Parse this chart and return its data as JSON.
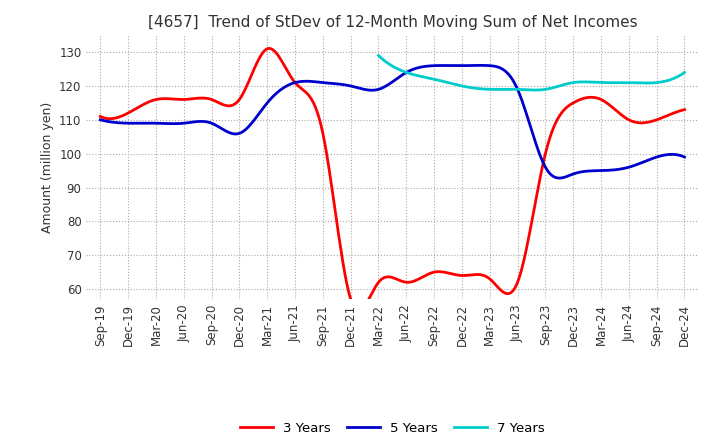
{
  "title": "[4657]  Trend of StDev of 12-Month Moving Sum of Net Incomes",
  "ylabel": "Amount (million yen)",
  "ylim": [
    57,
    135
  ],
  "yticks": [
    60,
    70,
    80,
    90,
    100,
    110,
    120,
    130
  ],
  "x_labels": [
    "Sep-19",
    "Dec-19",
    "Mar-20",
    "Jun-20",
    "Sep-20",
    "Dec-20",
    "Mar-21",
    "Jun-21",
    "Sep-21",
    "Dec-21",
    "Mar-22",
    "Jun-22",
    "Sep-22",
    "Dec-22",
    "Mar-23",
    "Jun-23",
    "Sep-23",
    "Dec-23",
    "Mar-24",
    "Jun-24",
    "Sep-24",
    "Dec-24"
  ],
  "series": {
    "3 Years": {
      "color": "#FF0000",
      "values": [
        111,
        112,
        116,
        116,
        116,
        116,
        131,
        121,
        106,
        57,
        62,
        62,
        65,
        64,
        63,
        62,
        100,
        115,
        116,
        110,
        110,
        113
      ]
    },
    "5 Years": {
      "color": "#0000CC",
      "values": [
        110,
        109,
        109,
        109,
        109,
        106,
        115,
        121,
        121,
        120,
        119,
        124,
        126,
        126,
        126,
        119,
        96,
        94,
        95,
        96,
        99,
        99
      ]
    },
    "7 Years": {
      "color": "#00CCCC",
      "values": [
        null,
        null,
        null,
        null,
        null,
        null,
        null,
        null,
        null,
        null,
        129,
        124,
        122,
        120,
        119,
        119,
        119,
        121,
        121,
        121,
        121,
        124
      ]
    },
    "10 Years": {
      "color": "#008000",
      "values": [
        null,
        null,
        null,
        null,
        null,
        null,
        null,
        null,
        null,
        null,
        null,
        null,
        null,
        null,
        null,
        null,
        null,
        null,
        null,
        null,
        null,
        null
      ]
    }
  },
  "legend_ncol": 4,
  "grid": true,
  "title_fontsize": 11,
  "tick_fontsize": 8.5,
  "label_fontsize": 9,
  "line_width": 2.0
}
